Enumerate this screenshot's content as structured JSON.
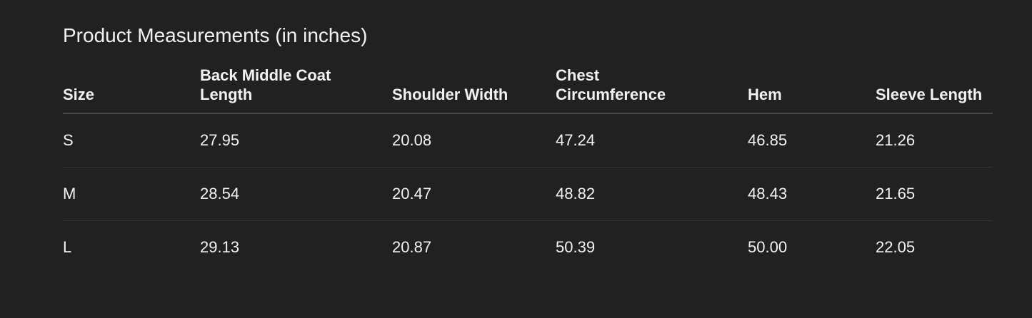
{
  "title": "Product Measurements (in inches)",
  "columns": [
    "Size",
    "Back Middle Coat Length",
    "Shoulder Width",
    "Chest Circumference",
    "Hem",
    "Sleeve Length"
  ],
  "rows": [
    [
      "S",
      "27.95",
      "20.08",
      "47.24",
      "46.85",
      "21.26"
    ],
    [
      "M",
      "28.54",
      "20.47",
      "48.82",
      "48.43",
      "21.65"
    ],
    [
      "L",
      "29.13",
      "20.87",
      "50.39",
      "50.00",
      "22.05"
    ]
  ]
}
